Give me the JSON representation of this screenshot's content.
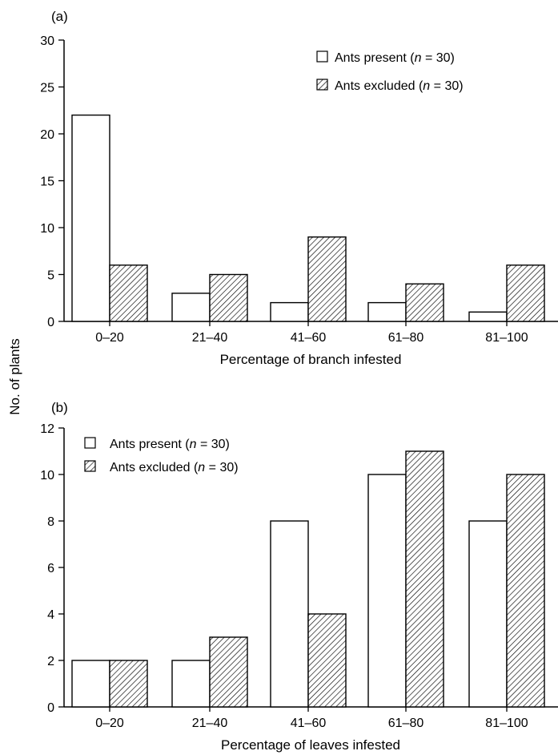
{
  "figure": {
    "ylabel": "No. of plants",
    "hatch_color": "#000000",
    "open_color": "#ffffff"
  },
  "chart_data": [
    {
      "type": "bar",
      "panel_label": "(a)",
      "categories": [
        "0–20",
        "21–40",
        "41–60",
        "61–80",
        "81–100"
      ],
      "series": [
        {
          "name": "Ants present",
          "n_label": "n",
          "n_value": "= 30)",
          "pattern": "open",
          "values": [
            22,
            3,
            2,
            2,
            1
          ]
        },
        {
          "name": "Ants excluded",
          "n_label": "n",
          "n_value": "= 30)",
          "pattern": "hatched",
          "values": [
            6,
            5,
            9,
            4,
            6
          ]
        }
      ],
      "xlabel": "Percentage of branch infested",
      "ylim": [
        0,
        30
      ],
      "yticks": [
        "0",
        "5",
        "10",
        "15",
        "20",
        "25",
        "30"
      ],
      "legend_position": "top-right",
      "grid": false
    },
    {
      "type": "bar",
      "panel_label": "(b)",
      "categories": [
        "0–20",
        "21–40",
        "41–60",
        "61–80",
        "81–100"
      ],
      "series": [
        {
          "name": "Ants present",
          "n_label": "n",
          "n_value": "= 30)",
          "pattern": "open",
          "values": [
            2,
            2,
            8,
            10,
            8
          ]
        },
        {
          "name": "Ants excluded",
          "n_label": "n",
          "n_value": "= 30)",
          "pattern": "hatched",
          "values": [
            2,
            3,
            4,
            11,
            10
          ]
        }
      ],
      "xlabel": "Percentage of leaves infested",
      "ylim": [
        0,
        12
      ],
      "yticks": [
        "0",
        "2",
        "4",
        "6",
        "8",
        "10",
        "12"
      ],
      "legend_position": "top-left",
      "grid": false
    }
  ]
}
